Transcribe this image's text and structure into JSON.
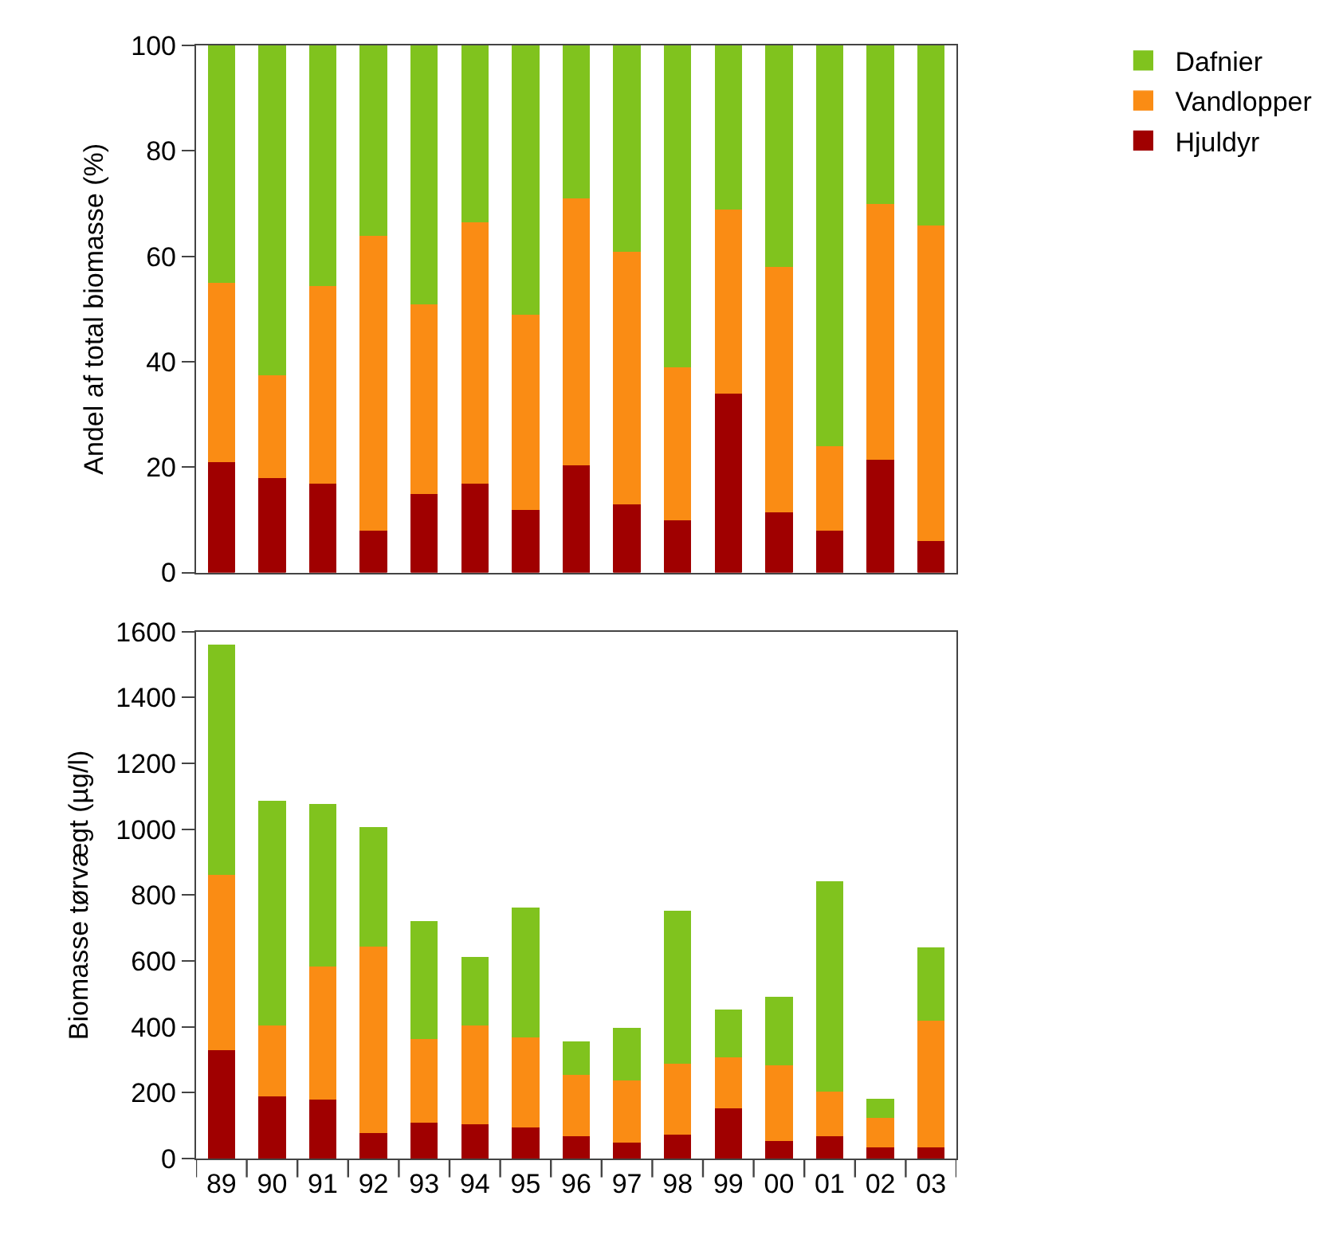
{
  "chart_data": [
    {
      "type": "bar",
      "stacked": true,
      "ylabel": "Andel af total biomasse (%)",
      "categories": [
        "89",
        "90",
        "91",
        "92",
        "93",
        "94",
        "95",
        "96",
        "97",
        "98",
        "99",
        "00",
        "01",
        "02",
        "03"
      ],
      "ylim": [
        0,
        100
      ],
      "yticks": [
        0,
        20,
        40,
        60,
        80,
        100
      ],
      "legend": "top right",
      "tick_labels": "y",
      "series": [
        {
          "name": "Hjuldyr",
          "color": "#a00000",
          "values": [
            21,
            18,
            17,
            8,
            15,
            17,
            12,
            20.5,
            13,
            10,
            34,
            11.5,
            8,
            21.5,
            6
          ]
        },
        {
          "name": "Vandlopper",
          "color": "#fa8c14",
          "values": [
            34,
            19.5,
            37.5,
            56,
            36,
            49.5,
            37,
            50.5,
            48,
            29,
            35,
            46.5,
            16,
            48.5,
            60
          ]
        },
        {
          "name": "Dafnier",
          "color": "#80c31e",
          "values": [
            45,
            62.5,
            45.5,
            36,
            49,
            33.5,
            51,
            29,
            39,
            61,
            31,
            42,
            76,
            30,
            34
          ]
        }
      ]
    },
    {
      "type": "bar",
      "stacked": true,
      "ylabel": "Biomasse tørvægt (µg/l)",
      "categories": [
        "89",
        "90",
        "91",
        "92",
        "93",
        "94",
        "95",
        "96",
        "97",
        "98",
        "99",
        "00",
        "01",
        "02",
        "03"
      ],
      "ylim": [
        0,
        1600
      ],
      "yticks": [
        0,
        200,
        400,
        600,
        800,
        1000,
        1200,
        1400,
        1600
      ],
      "series": [
        {
          "color": "#a00000",
          "values": [
            330,
            190,
            180,
            80,
            110,
            105,
            95,
            70,
            50,
            75,
            155,
            55,
            70,
            35,
            35
          ]
        },
        {
          "color": "#fa8c14",
          "values": [
            534,
            215,
            405,
            565,
            255,
            300,
            275,
            185,
            190,
            215,
            155,
            230,
            135,
            90,
            385
          ]
        },
        {
          "color": "#80c31e",
          "values": [
            696,
            680,
            490,
            360,
            355,
            205,
            390,
            100,
            155,
            460,
            140,
            205,
            635,
            55,
            220
          ]
        }
      ]
    }
  ]
}
